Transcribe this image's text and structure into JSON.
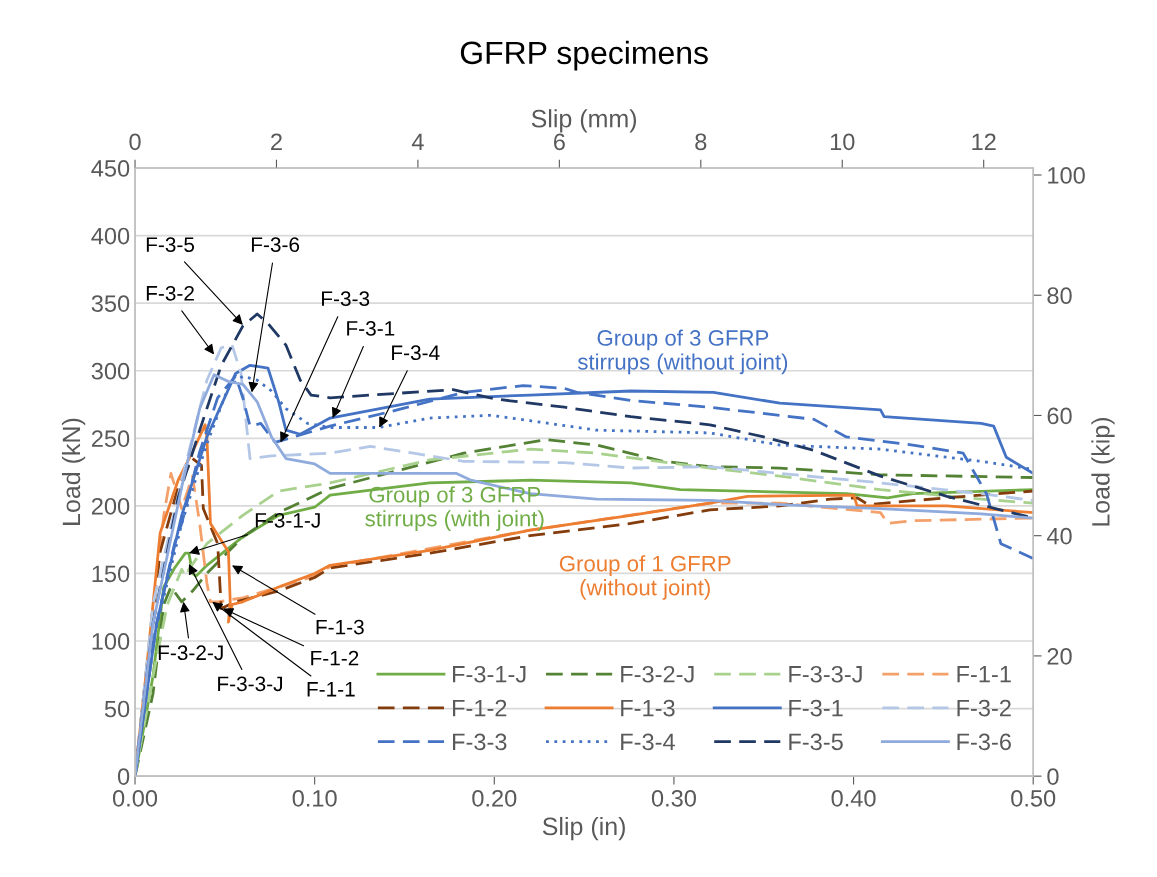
{
  "chart_data": {
    "type": "line",
    "title": "GFRP specimens",
    "xlabel": "Slip (in)",
    "ylabel": "Load (kN)",
    "x2label": "Slip (mm)",
    "y2label": "Load (kip)",
    "xlim": [
      0,
      0.5
    ],
    "xticks": [
      {
        "value": 0,
        "label": "0.00"
      },
      {
        "value": 0.1,
        "label": "0.10"
      },
      {
        "value": 0.2,
        "label": "0.20"
      },
      {
        "value": 0.3,
        "label": "0.30"
      },
      {
        "value": 0.4,
        "label": "0.40"
      },
      {
        "value": 0.5,
        "label": "0.50"
      }
    ],
    "ylim": [
      0,
      450
    ],
    "yticks": [
      0,
      50,
      100,
      150,
      200,
      250,
      300,
      350,
      400,
      450
    ],
    "x2lim": [
      0,
      12.7
    ],
    "x2ticks": [
      0,
      2,
      4,
      6,
      8,
      10,
      12
    ],
    "y2lim": [
      0,
      101.16
    ],
    "y2ticks": [
      0,
      20,
      40,
      60,
      80,
      100
    ],
    "grid": "y",
    "legend": "bottom right",
    "marker": "none",
    "series": [
      {
        "name": "F-3-1-J",
        "color": "#70ad47",
        "line_style": "solid",
        "x": [
          0,
          0.01,
          0.016,
          0.022,
          0.028,
          0.03,
          0.032,
          0.034,
          0.04,
          0.06,
          0.08,
          0.1,
          0.1086,
          0.164,
          0.22,
          0.276,
          0.3035,
          0.396,
          0.419,
          0.433,
          0.5
        ],
        "values": [
          0,
          74,
          140,
          154,
          165,
          165,
          150,
          148,
          156,
          177,
          193,
          199,
          208,
          217,
          219,
          217,
          212,
          209,
          206,
          209,
          212
        ]
      },
      {
        "name": "F-3-2-J",
        "color": "#548235",
        "line_style": "dashed",
        "x": [
          0,
          0.01,
          0.016,
          0.02,
          0.026,
          0.032,
          0.04,
          0.06,
          0.08,
          0.1086,
          0.146,
          0.183,
          0.229,
          0.257,
          0.294,
          0.32,
          0.359,
          0.415,
          0.5
        ],
        "values": [
          0,
          61,
          127,
          140,
          129,
          137,
          150,
          177,
          195,
          213,
          226,
          239,
          249,
          245,
          233,
          229,
          228,
          223,
          221
        ]
      },
      {
        "name": "F-3-3-J",
        "color": "#a9d18e",
        "line_style": "dashed",
        "x": [
          0,
          0.01,
          0.018,
          0.026,
          0.028,
          0.03,
          0.04,
          0.06,
          0.08,
          0.1086,
          0.164,
          0.22,
          0.257,
          0.285,
          0.32,
          0.359,
          0.415,
          0.471,
          0.5
        ],
        "values": [
          0,
          74,
          127,
          153,
          148,
          153,
          172,
          193,
          211,
          217,
          234,
          242,
          239,
          234,
          228,
          222,
          212,
          205,
          202
        ]
      },
      {
        "name": "F-1-1",
        "color": "#f4a06a",
        "line_style": "dashed",
        "x": [
          0,
          0.006,
          0.016,
          0.02,
          0.026,
          0.032,
          0.036,
          0.04,
          0.042,
          0.046,
          0.06,
          0.08,
          0.1,
          0.1086,
          0.22,
          0.32,
          0.359,
          0.415,
          0.419,
          0.433,
          0.5
        ],
        "values": [
          0,
          74,
          193,
          224,
          198,
          222,
          187,
          143,
          129,
          129,
          132,
          140,
          148,
          155,
          182,
          202,
          202,
          195,
          187,
          189,
          191
        ]
      },
      {
        "name": "F-1-2",
        "color": "#843c0c",
        "line_style": "dashed",
        "x": [
          0,
          0.006,
          0.014,
          0.024,
          0.032,
          0.037,
          0.038,
          0.046,
          0.048,
          0.056,
          0.08,
          0.1,
          0.1086,
          0.164,
          0.22,
          0.276,
          0.32,
          0.359,
          0.387,
          0.402,
          0.408,
          0.452,
          0.5
        ],
        "values": [
          0,
          74,
          166,
          214,
          235,
          230,
          198,
          172,
          124,
          129,
          137,
          147,
          154,
          165,
          178,
          187,
          197,
          200,
          205,
          206,
          201,
          206,
          211
        ]
      },
      {
        "name": "F-1-3",
        "color": "#ed7d31",
        "line_style": "solid",
        "x": [
          0,
          0.006,
          0.014,
          0.024,
          0.032,
          0.039,
          0.04,
          0.042,
          0.052,
          0.053,
          0.052,
          0.054,
          0.06,
          0.08,
          0.1,
          0.1086,
          0.164,
          0.22,
          0.276,
          0.32,
          0.341,
          0.4,
          0.402,
          0.452,
          0.5
        ],
        "values": [
          0,
          74,
          180,
          219,
          240,
          260,
          251,
          187,
          166,
          129,
          114,
          127,
          129,
          140,
          150,
          156,
          167,
          182,
          193,
          202,
          207,
          208,
          200,
          200,
          195
        ]
      },
      {
        "name": "F-3-1",
        "color": "#4472c4",
        "line_style": "solid",
        "x": [
          0,
          0.012,
          0.026,
          0.04,
          0.056,
          0.064,
          0.074,
          0.08,
          0.084,
          0.092,
          0.1086,
          0.164,
          0.22,
          0.276,
          0.322,
          0.359,
          0.415,
          0.417,
          0.471,
          0.478,
          0.485,
          0.5
        ],
        "values": [
          0,
          113,
          193,
          251,
          298,
          304,
          302,
          277,
          256,
          253,
          265,
          279,
          282,
          285,
          284,
          276,
          271,
          266,
          261,
          259,
          236,
          224
        ]
      },
      {
        "name": "F-3-2",
        "color": "#b4c7e7",
        "line_style": "dashed",
        "x": [
          0,
          0.01,
          0.026,
          0.04,
          0.048,
          0.054,
          0.059,
          0.064,
          0.076,
          0.1086,
          0.131,
          0.155,
          0.183,
          0.239,
          0.276,
          0.32,
          0.359,
          0.415,
          0.471,
          0.5
        ],
        "values": [
          0,
          127,
          219,
          293,
          317,
          319,
          298,
          235,
          237,
          239,
          244,
          239,
          233,
          232,
          228,
          229,
          224,
          217,
          209,
          204
        ]
      },
      {
        "name": "F-3-3",
        "color": "#4472c4",
        "line_style": "dashed",
        "x": [
          0,
          0.012,
          0.022,
          0.026,
          0.036,
          0.046,
          0.056,
          0.06,
          0.064,
          0.07,
          0.078,
          0.1086,
          0.146,
          0.183,
          0.216,
          0.239,
          0.246,
          0.276,
          0.32,
          0.378,
          0.396,
          0.433,
          0.461,
          0.474,
          0.482,
          0.5
        ],
        "values": [
          0,
          113,
          172,
          187,
          240,
          280,
          296,
          280,
          259,
          261,
          247,
          259,
          271,
          284,
          289,
          287,
          284,
          278,
          273,
          264,
          251,
          245,
          239,
          209,
          172,
          161
        ]
      },
      {
        "name": "F-3-4",
        "color": "#4472c4",
        "line_style": "dotted",
        "x": [
          0,
          0.01,
          0.026,
          0.04,
          0.052,
          0.06,
          0.068,
          0.076,
          0.084,
          0.096,
          0.1086,
          0.136,
          0.164,
          0.198,
          0.22,
          0.257,
          0.32,
          0.359,
          0.415,
          0.471,
          0.5
        ],
        "values": [
          0,
          100,
          187,
          246,
          288,
          296,
          293,
          285,
          272,
          261,
          258,
          258,
          265,
          267,
          263,
          256,
          254,
          245,
          242,
          233,
          227
        ]
      },
      {
        "name": "F-3-5",
        "color": "#203864",
        "line_style": "dashed",
        "x": [
          0,
          0.01,
          0.024,
          0.036,
          0.048,
          0.06,
          0.068,
          0.074,
          0.084,
          0.092,
          0.098,
          0.1086,
          0.177,
          0.201,
          0.239,
          0.276,
          0.32,
          0.35,
          0.378,
          0.415,
          0.452,
          0.5
        ],
        "values": [
          0,
          113,
          206,
          256,
          304,
          333,
          342,
          335,
          319,
          293,
          282,
          280,
          286,
          279,
          273,
          266,
          260,
          251,
          241,
          222,
          207,
          191
        ]
      },
      {
        "name": "F-3-6",
        "color": "#8faadc",
        "line_style": "solid",
        "x": [
          0,
          0.01,
          0.026,
          0.036,
          0.044,
          0.052,
          0.06,
          0.068,
          0.076,
          0.084,
          0.1,
          0.1086,
          0.179,
          0.187,
          0.22,
          0.257,
          0.32,
          0.359,
          0.415,
          0.471,
          0.5
        ],
        "values": [
          0,
          113,
          214,
          272,
          297,
          292,
          290,
          277,
          251,
          235,
          231,
          224,
          224,
          219,
          209,
          205,
          204,
          201,
          198,
          194,
          191
        ]
      }
    ],
    "annotations": [
      {
        "text": "F-3-5",
        "x": 0.06,
        "y": 334
      },
      {
        "text": "F-3-6",
        "x": 0.065,
        "y": 284
      },
      {
        "text": "F-3-2",
        "x": 0.044,
        "y": 312
      },
      {
        "text": "F-3-3",
        "x": 0.081,
        "y": 247
      },
      {
        "text": "F-3-1",
        "x": 0.11,
        "y": 265
      },
      {
        "text": "F-3-4",
        "x": 0.136,
        "y": 258
      },
      {
        "text": "F-3-1-J",
        "x": 0.03,
        "y": 165
      },
      {
        "text": "F-3-2-J",
        "x": 0.027,
        "y": 129
      },
      {
        "text": "F-3-3-J",
        "x": 0.03,
        "y": 157
      },
      {
        "text": "F-1-1",
        "x": 0.043,
        "y": 129
      },
      {
        "text": "F-1-2",
        "x": 0.049,
        "y": 124
      },
      {
        "text": "F-1-3",
        "x": 0.054,
        "y": 156
      },
      "Group of 3 GFRP\nstirrups (without joint)",
      "Group of 3 GFRP\nstirrups (with joint)",
      "Group of 1 GFRP\n(without joint)"
    ]
  }
}
